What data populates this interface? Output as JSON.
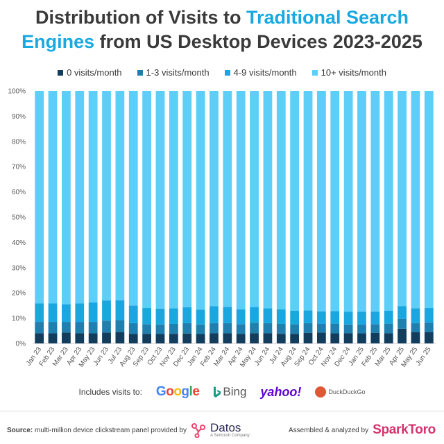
{
  "title": {
    "part1": "Distribution of Visits to ",
    "highlight": "Traditional Search",
    "part2": "Engines",
    "part3": " from US Desktop Devices 2023-2025",
    "highlight_color": "#19a9e1"
  },
  "chart_data": {
    "type": "bar",
    "stacked": true,
    "percent": true,
    "categories": [
      "Jan 23",
      "Feb 23",
      "Mar 23",
      "Apr 23",
      "May 23",
      "Jun 23",
      "Jul 23",
      "Aug 23",
      "Sep 23",
      "Oct 23",
      "Nov 23",
      "Dec 23",
      "Jan 24",
      "Feb 24",
      "Mar 24",
      "Apr 24",
      "May 24",
      "Jun 24",
      "Jul 24",
      "Aug 24",
      "Sep 24",
      "Oct 24",
      "Nov 24",
      "Dec 24",
      "Jan 25",
      "Feb 25",
      "Mar 25",
      "Apr 25",
      "May 25",
      "Jun 25"
    ],
    "series": [
      {
        "name": "0 visits/month",
        "color": "#123d5c",
        "values": [
          4.0,
          4.0,
          4.3,
          4.0,
          4.0,
          4.3,
          4.5,
          3.8,
          3.8,
          3.7,
          3.8,
          3.9,
          3.7,
          4.0,
          4.0,
          3.8,
          4.0,
          4.0,
          3.8,
          3.8,
          4.2,
          4.3,
          4.0,
          4.0,
          4.0,
          4.2,
          4.0,
          5.8,
          4.5,
          4.5
        ]
      },
      {
        "name": "1-3 visits/month",
        "color": "#1f7fae",
        "values": [
          4.5,
          4.5,
          4.2,
          4.5,
          4.5,
          4.7,
          4.8,
          4.2,
          3.8,
          3.8,
          3.9,
          4.1,
          3.8,
          4.0,
          4.0,
          3.8,
          4.2,
          4.0,
          3.9,
          3.8,
          3.8,
          3.4,
          3.8,
          3.5,
          3.4,
          3.4,
          3.8,
          3.9,
          3.5,
          3.8
        ]
      },
      {
        "name": "4-9 visits/month",
        "color": "#1aa7e0",
        "values": [
          7.3,
          7.3,
          7.0,
          7.3,
          7.7,
          8.0,
          7.8,
          7.0,
          6.4,
          6.3,
          6.2,
          6.3,
          5.9,
          6.7,
          6.5,
          5.9,
          6.2,
          5.9,
          5.8,
          5.4,
          5.1,
          5.0,
          5.0,
          5.0,
          5.1,
          5.0,
          5.2,
          5.1,
          5.9,
          5.7
        ]
      },
      {
        "name": "10+ visits/month",
        "color": "#5ccef8",
        "values": [
          84.2,
          84.2,
          84.5,
          84.2,
          83.8,
          83.0,
          82.9,
          85.0,
          86.0,
          86.2,
          86.1,
          85.7,
          86.6,
          85.3,
          85.5,
          86.5,
          85.6,
          86.1,
          86.5,
          87.0,
          86.9,
          87.3,
          87.2,
          87.5,
          87.5,
          87.4,
          87.0,
          85.2,
          86.1,
          86.0
        ]
      }
    ],
    "yticks": [
      "0%",
      "10%",
      "20%",
      "30%",
      "40%",
      "50%",
      "60%",
      "70%",
      "80%",
      "90%",
      "100%"
    ],
    "ylim": [
      0,
      100
    ],
    "legend_position": "top",
    "grid": false
  },
  "includes": {
    "label": "Includes visits to:",
    "logos": [
      "Google",
      "Bing",
      "yahoo!",
      "DuckDuckGo"
    ]
  },
  "footer": {
    "source_label": "Source:",
    "source_text": " multi-million device clickstream panel provided by",
    "datos_name": "Datos",
    "datos_sub": "A Semrush Company",
    "assembled_text": "Assembled & analyzed by",
    "sparktoro": "SparkToro"
  }
}
